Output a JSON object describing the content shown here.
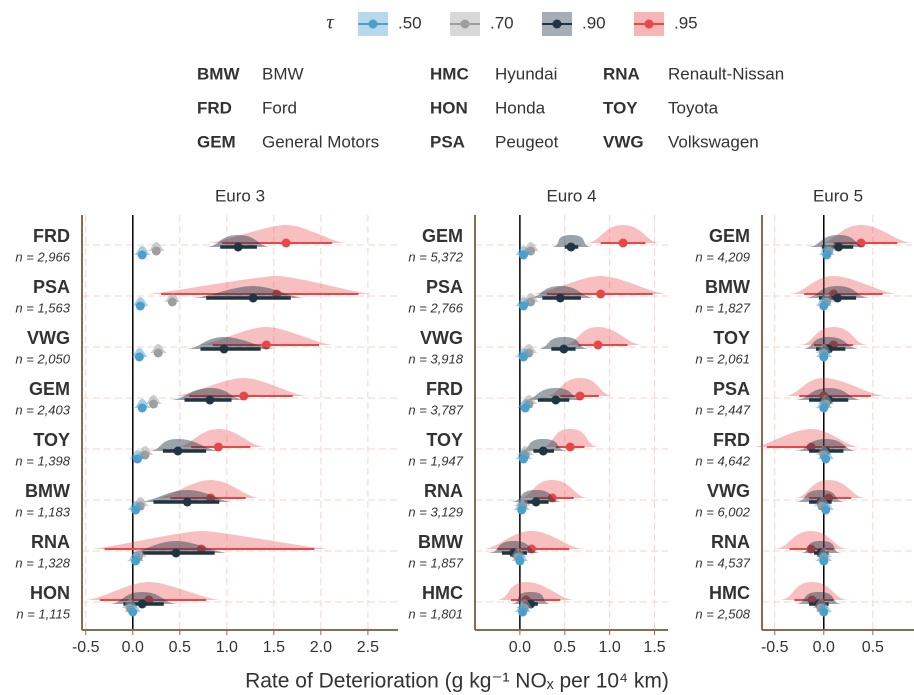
{
  "legend": {
    "symbol": "τ",
    "items": [
      {
        "name": ".50",
        "color": "#4a9fcc"
      },
      {
        "name": ".70",
        "color": "#9e9e9e"
      },
      {
        "name": ".90",
        "color": "#1f3544"
      },
      {
        "name": ".95",
        "color": "#e8474a"
      }
    ]
  },
  "key": [
    {
      "code": "BMW",
      "name": "BMW"
    },
    {
      "code": "FRD",
      "name": "Ford"
    },
    {
      "code": "GEM",
      "name": "General Motors"
    },
    {
      "code": "HMC",
      "name": "Hyundai"
    },
    {
      "code": "HON",
      "name": "Honda"
    },
    {
      "code": "PSA",
      "name": "Peugeot"
    },
    {
      "code": "RNA",
      "name": "Renault-Nissan"
    },
    {
      "code": "TOY",
      "name": "Toyota"
    },
    {
      "code": "VWG",
      "name": "Volkswagen"
    }
  ],
  "x_label": "Rate of Deterioration  (g kg⁻¹ NOₓ per 10⁴ km)",
  "chart_data": [
    {
      "type": "interval",
      "title": "Euro 3",
      "categories": [
        "FRD",
        "PSA",
        "VWG",
        "GEM",
        "TOY",
        "BMW",
        "RNA",
        "HON"
      ],
      "n_labels": [
        "n = 2,966",
        "n = 1,563",
        "n = 2,050",
        "n = 2,403",
        "n = 1,398",
        "n = 1,183",
        "n = 1,328",
        "n = 1,115"
      ],
      "series": [
        {
          "values": [
            0.1,
            0.08,
            0.07,
            0.1,
            0.05,
            0.03,
            0.03,
            0.0
          ]
        },
        {
          "values": [
            0.25,
            0.42,
            0.27,
            0.22,
            0.13,
            0.08,
            0.06,
            -0.03
          ]
        },
        {
          "values": [
            1.12,
            1.28,
            0.97,
            0.82,
            0.48,
            0.58,
            0.46,
            0.1
          ],
          "low": [
            0.93,
            0.78,
            0.72,
            0.55,
            0.32,
            0.22,
            0.1,
            -0.1
          ],
          "high": [
            1.32,
            1.68,
            1.36,
            1.05,
            0.78,
            0.92,
            0.87,
            0.33
          ]
        },
        {
          "values": [
            1.63,
            1.53,
            1.42,
            1.18,
            0.91,
            0.83,
            0.73,
            0.17
          ],
          "low": [
            0.95,
            0.3,
            0.85,
            0.6,
            0.62,
            0.4,
            -0.3,
            -0.35
          ],
          "high": [
            2.12,
            2.4,
            1.98,
            1.7,
            1.25,
            1.2,
            1.93,
            0.78
          ]
        }
      ],
      "xlim": [
        -0.54,
        2.82
      ],
      "xticks": [
        -0.5,
        {
          "value": 0,
          "label": "0.0"
        },
        0.5,
        {
          "value": 1,
          "label": "1.0"
        },
        1.5,
        {
          "value": 2,
          "label": "2.0"
        },
        2.5
      ],
      "grid": true
    },
    {
      "type": "interval",
      "title": "Euro 4",
      "categories": [
        "GEM",
        "PSA",
        "VWG",
        "FRD",
        "TOY",
        "RNA",
        "BMW",
        "HMC"
      ],
      "n_labels": [
        "n = 5,372",
        "n = 2,766",
        "n = 3,918",
        "n = 3,787",
        "n = 1,947",
        "n = 3,129",
        "n = 1,857",
        "n = 1,801"
      ],
      "series": [
        {
          "values": [
            0.04,
            0.04,
            0.04,
            0.06,
            0.04,
            0.02,
            0.0,
            0.03
          ]
        },
        {
          "values": [
            0.12,
            0.12,
            0.1,
            0.1,
            0.06,
            0.03,
            -0.02,
            0.05
          ]
        },
        {
          "values": [
            0.57,
            0.45,
            0.49,
            0.4,
            0.26,
            0.18,
            -0.07,
            0.12
          ],
          "low": [
            0.5,
            0.25,
            0.35,
            0.2,
            0.15,
            0.05,
            -0.2,
            0.05
          ],
          "high": [
            0.65,
            0.68,
            0.62,
            0.55,
            0.38,
            0.32,
            0.08,
            0.2
          ]
        },
        {
          "values": [
            1.15,
            0.9,
            0.87,
            0.67,
            0.56,
            0.36,
            0.13,
            0.07
          ],
          "low": [
            0.9,
            0.3,
            0.65,
            0.45,
            0.4,
            0.15,
            -0.25,
            -0.1
          ],
          "high": [
            1.4,
            1.48,
            1.2,
            0.88,
            0.72,
            0.6,
            0.55,
            0.45
          ]
        }
      ],
      "xlim": [
        -0.5,
        1.65
      ],
      "xticks": [
        {
          "value": 0,
          "label": "0.0"
        },
        0.5,
        {
          "value": 1,
          "label": "1.0"
        },
        1.5
      ],
      "grid": true
    },
    {
      "type": "interval",
      "title": "Euro 5",
      "categories": [
        "GEM",
        "BMW",
        "TOY",
        "PSA",
        "FRD",
        "VWG",
        "RNA",
        "HMC"
      ],
      "n_labels": [
        "n = 4,209",
        "n = 1,827",
        "n = 2,061",
        "n = 2,447",
        "n = 4,642",
        "n = 6,002",
        "n = 4,537",
        "n = 2,508"
      ],
      "series": [
        {
          "values": [
            0.03,
            0.0,
            0.0,
            0.0,
            0.02,
            0.02,
            0.0,
            0.0
          ]
        },
        {
          "values": [
            0.05,
            0.03,
            0.0,
            0.02,
            0.0,
            -0.02,
            0.0,
            -0.03
          ]
        },
        {
          "values": [
            0.15,
            0.14,
            0.05,
            0.05,
            0.02,
            -0.03,
            -0.03,
            -0.05
          ],
          "low": [
            -0.02,
            -0.05,
            -0.08,
            -0.15,
            -0.15,
            -0.15,
            -0.1,
            -0.15
          ],
          "high": [
            0.3,
            0.33,
            0.22,
            0.25,
            0.2,
            0.08,
            0.05,
            0.05
          ]
        },
        {
          "values": [
            0.38,
            0.1,
            0.1,
            0.0,
            -0.13,
            0.05,
            -0.13,
            -0.12
          ],
          "low": [
            0.1,
            -0.2,
            -0.1,
            -0.25,
            -0.58,
            -0.15,
            -0.35,
            -0.3
          ],
          "high": [
            0.75,
            0.6,
            0.3,
            0.48,
            0.22,
            0.28,
            0.1,
            0.1
          ]
        }
      ],
      "xlim": [
        -0.63,
        0.92
      ],
      "xticks": [
        -0.5,
        {
          "value": 0,
          "label": "0.0"
        },
        0.5
      ],
      "grid": true
    }
  ]
}
